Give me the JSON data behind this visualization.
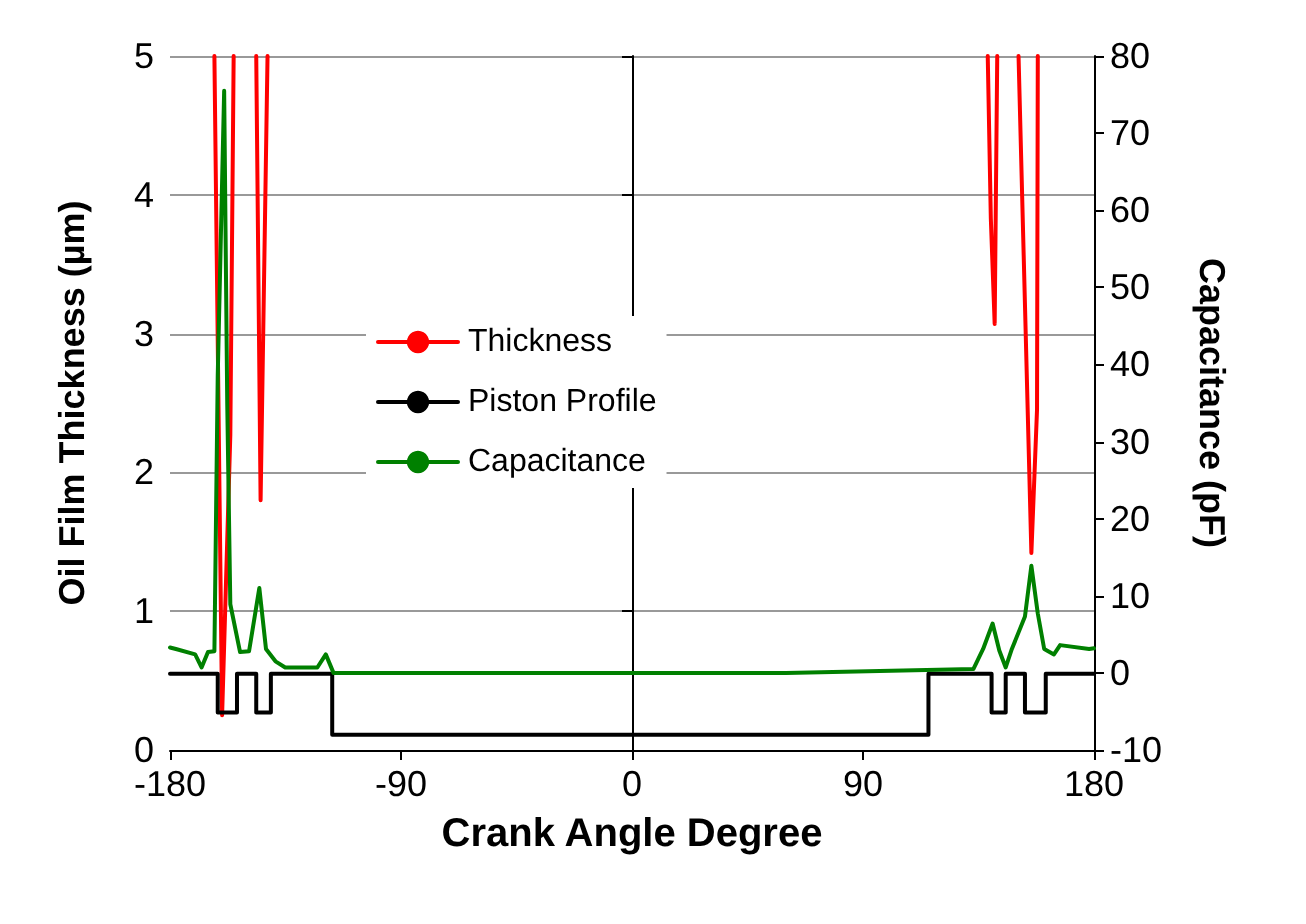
{
  "chart_data": {
    "type": "line",
    "xlabel": "Crank Angle Degree",
    "ylabel": "Oil Film Thickness (µm)",
    "y2label": "Capacitance (pF)",
    "xlim": [
      -180,
      180
    ],
    "xticks": [
      -180,
      -90,
      0,
      90,
      180
    ],
    "ylim": [
      0,
      5
    ],
    "yticks": [
      0,
      1,
      2,
      3,
      4,
      5
    ],
    "y2lim": [
      -10,
      80
    ],
    "y2ticks": [
      -10,
      0,
      10,
      20,
      30,
      40,
      50,
      60,
      70,
      80
    ],
    "grid": "y",
    "legend": "left",
    "marker": "none",
    "line_style": "solid",
    "series": [
      {
        "name": "Thickness",
        "color": "#ff0000",
        "x": [
          -162.7,
          -159.7,
          -156.5,
          -155.2,
          -150,
          -146.4,
          -144.7,
          -142,
          0,
          138.6,
          139.8,
          141.3,
          142.3,
          146,
          150.6,
          155.6,
          157.8,
          158.1
        ],
        "values": [
          5,
          0.25,
          2.27,
          5,
          null,
          5,
          1.8,
          5,
          null,
          5,
          3.83,
          3.07,
          5,
          null,
          5,
          1.42,
          2.45,
          5
        ]
      },
      {
        "name": "Piston Profile",
        "color": "#000000",
        "x": [
          -180,
          -161.4,
          -161.4,
          -153.9,
          -153.9,
          -146.4,
          -146.4,
          -140.7,
          -140.7,
          -116.8,
          -116.8,
          115.5,
          115.5,
          140.1,
          140.1,
          145.6,
          145.6,
          153.1,
          153.1,
          161.2,
          161.2,
          180
        ],
        "values": [
          0.55,
          0.55,
          0.27,
          0.27,
          0.55,
          0.55,
          0.27,
          0.27,
          0.55,
          0.55,
          0.11,
          0.11,
          0.55,
          0.55,
          0.27,
          0.27,
          0.55,
          0.55,
          0.27,
          0.27,
          0.55,
          0.55
        ]
      },
      {
        "name": "Capacitance",
        "color": "#008000",
        "axis": "y2",
        "x": [
          -180,
          -177.7,
          -170.2,
          -167.7,
          -165.2,
          -162.7,
          -161.4,
          -158.9,
          -157.7,
          -156.5,
          -152.7,
          -149.2,
          -145.2,
          -142.6,
          -138.9,
          -135.1,
          -122.6,
          -119.3,
          -116.3,
          -60,
          0,
          60,
          133,
          136.8,
          140.5,
          143.1,
          145.6,
          148,
          153.1,
          155.6,
          158.1,
          160.6,
          164.4,
          166.8,
          178.1,
          180
        ],
        "values": [
          3.3,
          3.1,
          2.4,
          0.7,
          2.7,
          2.8,
          38.6,
          75.5,
          35,
          8.9,
          2.7,
          2.8,
          11,
          3.1,
          1.5,
          0.7,
          0.7,
          2.4,
          0,
          0,
          0,
          0,
          0.5,
          3.1,
          6.4,
          2.9,
          0.7,
          3.1,
          7.3,
          13.9,
          7.7,
          3.1,
          2.4,
          3.6,
          3.1,
          3.2
        ]
      }
    ]
  }
}
